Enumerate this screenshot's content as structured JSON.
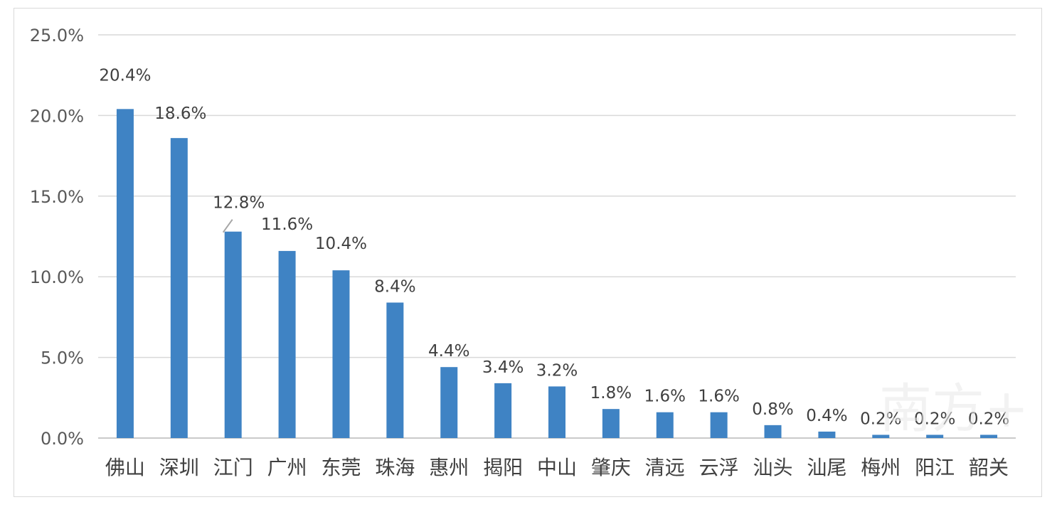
{
  "chart_data": {
    "type": "bar",
    "categories": [
      "佛山",
      "深圳",
      "江门",
      "广州",
      "东莞",
      "珠海",
      "惠州",
      "揭阳",
      "中山",
      "肇庆",
      "清远",
      "云浮",
      "汕头",
      "汕尾",
      "梅州",
      "阳江",
      "韶关"
    ],
    "values": [
      20.4,
      18.6,
      12.8,
      11.6,
      10.4,
      8.4,
      4.4,
      3.4,
      3.2,
      1.8,
      1.6,
      1.6,
      0.8,
      0.4,
      0.2,
      0.2,
      0.2
    ],
    "data_labels": [
      "20.4%",
      "18.6%",
      "12.8%",
      "11.6%",
      "10.4%",
      "8.4%",
      "4.4%",
      "3.4%",
      "3.2%",
      "1.8%",
      "1.6%",
      "1.6%",
      "0.8%",
      "0.4%",
      "0.2%",
      "0.2%",
      "0.2%"
    ],
    "y_ticks": [
      "0.0%",
      "5.0%",
      "10.0%",
      "15.0%",
      "20.0%",
      "25.0%"
    ],
    "ylim": [
      0,
      25
    ],
    "title": "",
    "xlabel": "",
    "ylabel": "",
    "grid": true,
    "legend": "none",
    "bar_color": "#3f83c4",
    "grid_color": "#d9d9d9"
  },
  "watermark": "南方+"
}
